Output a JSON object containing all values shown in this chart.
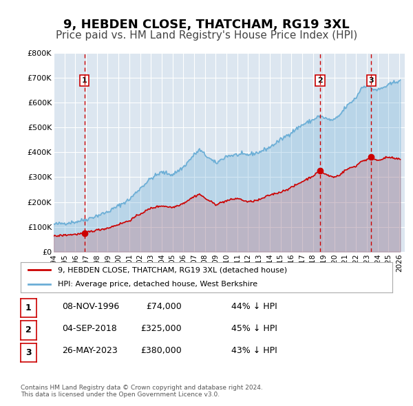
{
  "title": "9, HEBDEN CLOSE, THATCHAM, RG19 3XL",
  "subtitle": "Price paid vs. HM Land Registry's House Price Index (HPI)",
  "bg_color": "#dce6f0",
  "plot_bg_color": "#dce6f0",
  "grid_color": "#ffffff",
  "ylim": [
    0,
    800000
  ],
  "yticks": [
    0,
    100000,
    200000,
    300000,
    400000,
    500000,
    600000,
    700000,
    800000
  ],
  "ytick_labels": [
    "£0",
    "£100K",
    "£200K",
    "£300K",
    "£400K",
    "£500K",
    "£600K",
    "£700K",
    "£800K"
  ],
  "xlim_start": 1994.0,
  "xlim_end": 2026.5,
  "xticks": [
    1994,
    1995,
    1996,
    1997,
    1998,
    1999,
    2000,
    2001,
    2002,
    2003,
    2004,
    2005,
    2006,
    2007,
    2008,
    2009,
    2010,
    2011,
    2012,
    2013,
    2014,
    2015,
    2016,
    2017,
    2018,
    2019,
    2020,
    2021,
    2022,
    2023,
    2024,
    2025,
    2026
  ],
  "hpi_color": "#6baed6",
  "sale_color": "#cc0000",
  "sale_marker_color": "#cc0000",
  "vline_color": "#cc0000",
  "sales": [
    {
      "year": 1996.85,
      "price": 74000,
      "label": "1"
    },
    {
      "year": 2018.67,
      "price": 325000,
      "label": "2"
    },
    {
      "year": 2023.4,
      "price": 380000,
      "label": "3"
    }
  ],
  "legend_sale_label": "9, HEBDEN CLOSE, THATCHAM, RG19 3XL (detached house)",
  "legend_hpi_label": "HPI: Average price, detached house, West Berkshire",
  "table_rows": [
    {
      "num": "1",
      "date": "08-NOV-1996",
      "price": "£74,000",
      "hpi": "44% ↓ HPI"
    },
    {
      "num": "2",
      "date": "04-SEP-2018",
      "price": "£325,000",
      "hpi": "45% ↓ HPI"
    },
    {
      "num": "3",
      "date": "26-MAY-2023",
      "price": "£380,000",
      "hpi": "43% ↓ HPI"
    }
  ],
  "footer": "Contains HM Land Registry data © Crown copyright and database right 2024.\nThis data is licensed under the Open Government Licence v3.0.",
  "title_fontsize": 13,
  "subtitle_fontsize": 11
}
